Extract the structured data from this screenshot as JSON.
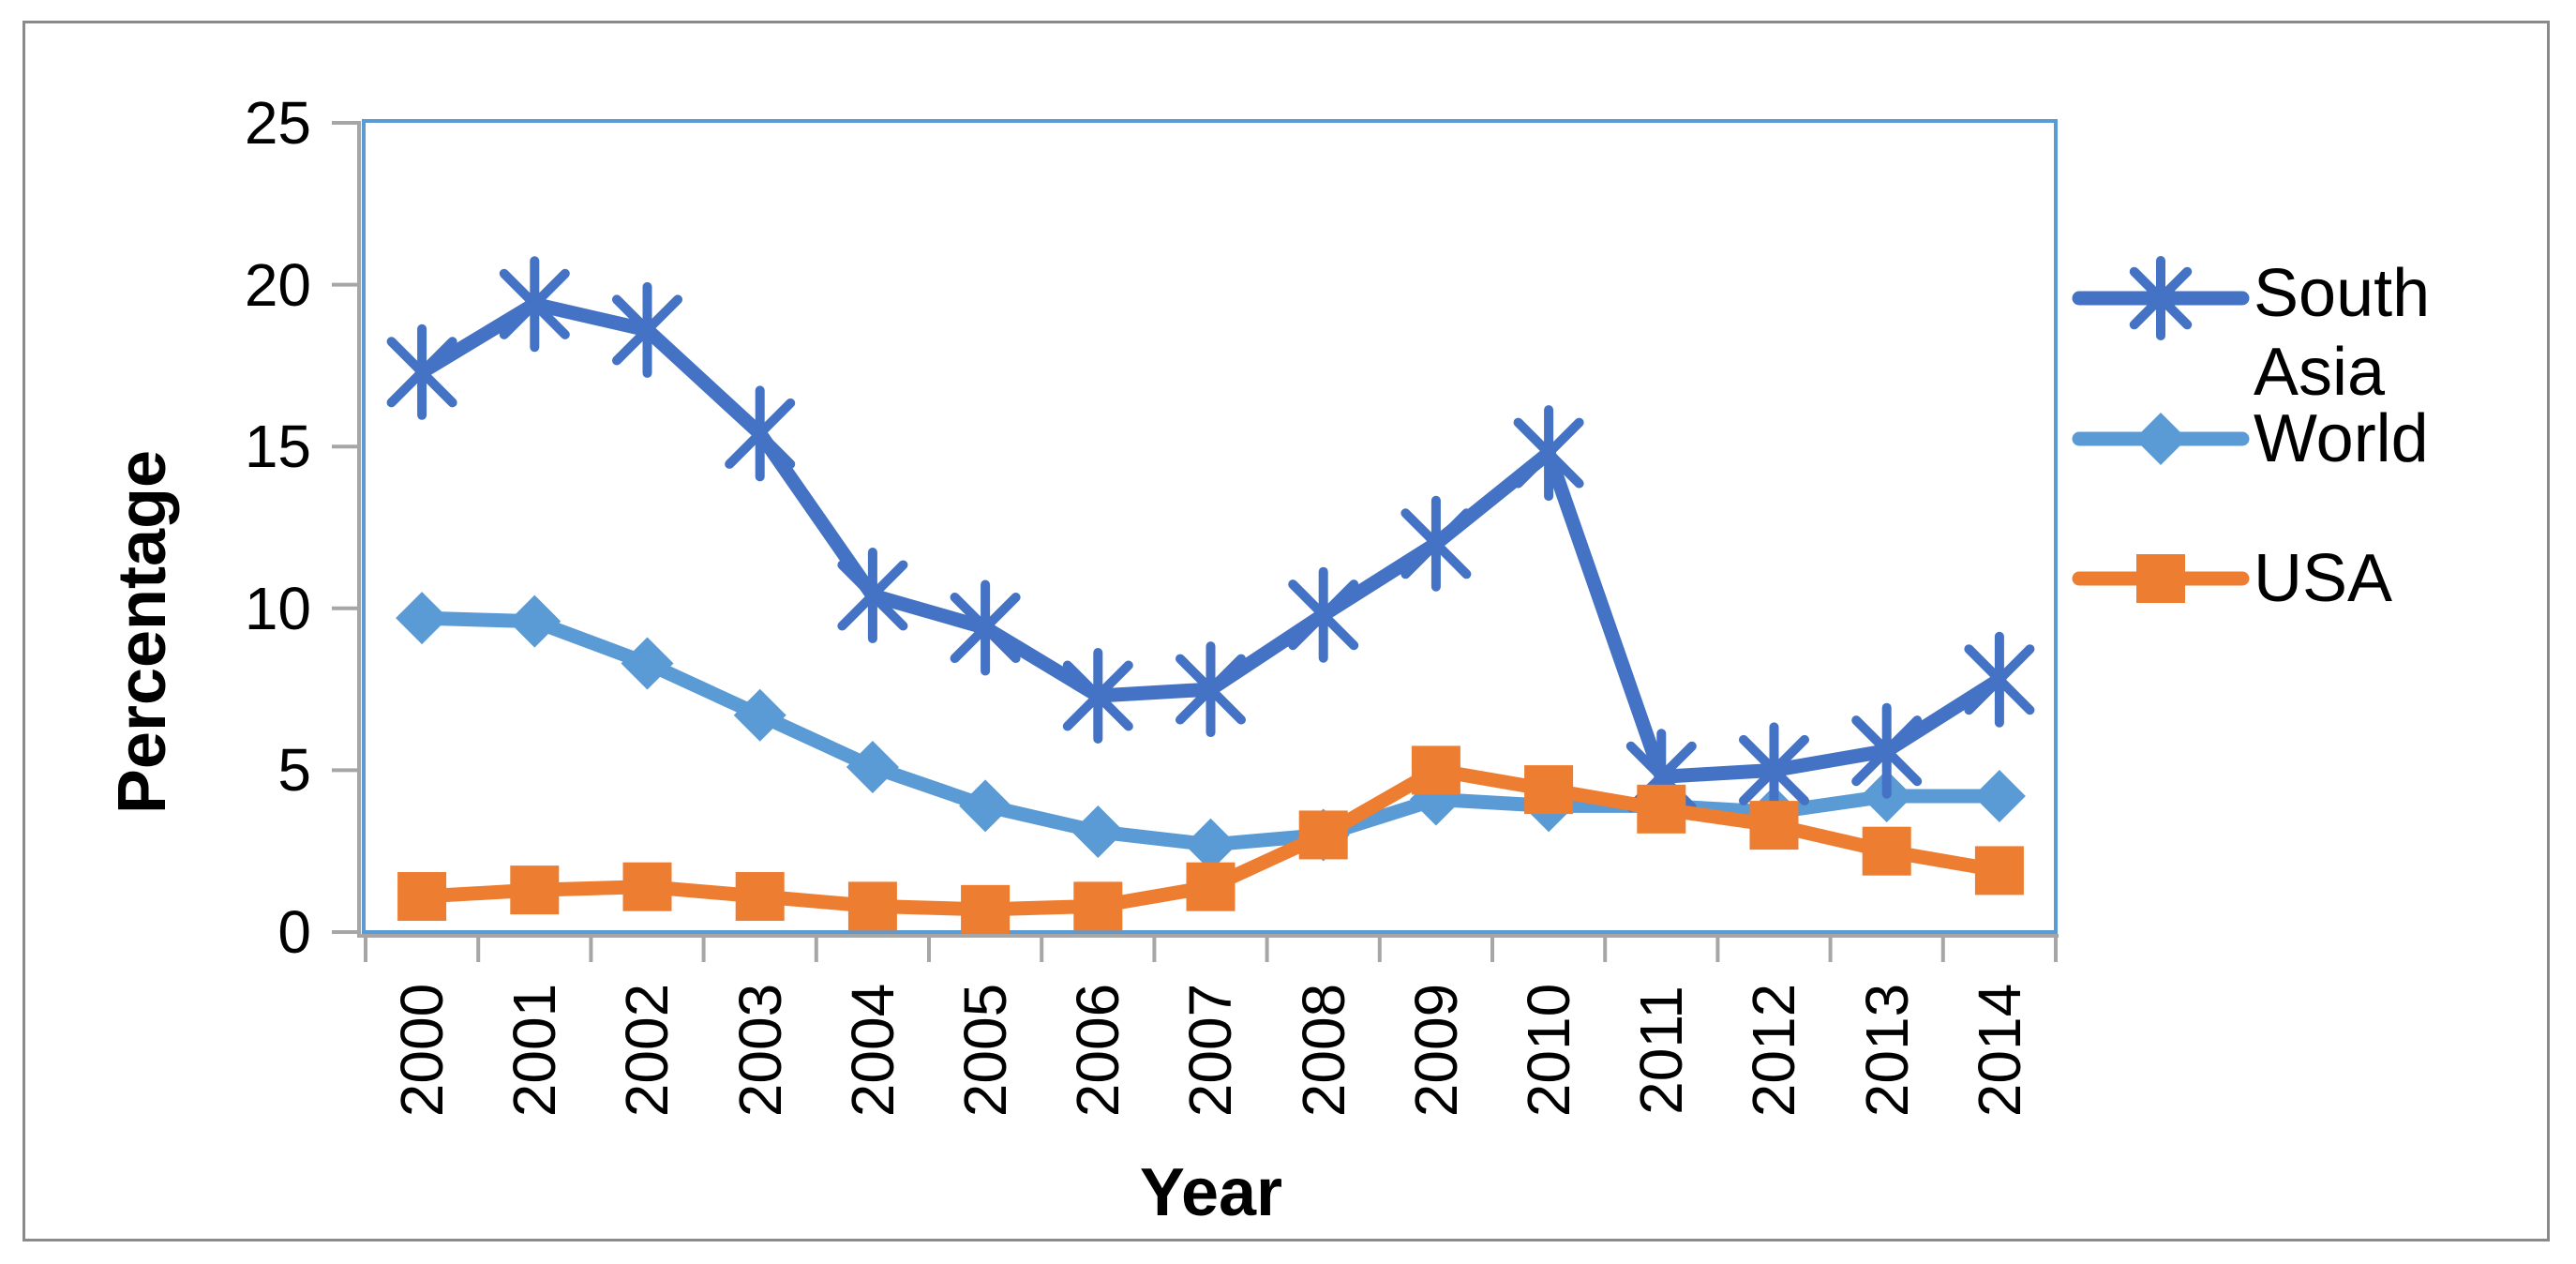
{
  "chart_data": {
    "type": "line",
    "title": "",
    "xlabel": "Year",
    "ylabel": "Percentage",
    "categories": [
      "2000",
      "2001",
      "2002",
      "2003",
      "2004",
      "2005",
      "2006",
      "2007",
      "2008",
      "2009",
      "2010",
      "2011",
      "2012",
      "2013",
      "2014"
    ],
    "y_axis": {
      "min": 0,
      "max": 25,
      "step": 5,
      "tick_labels": [
        "25",
        "20",
        "15",
        "10",
        "5",
        "0"
      ]
    },
    "grid": false,
    "legend_position": "right",
    "series": [
      {
        "name": "South Asia",
        "color": "#4472C4",
        "marker": "asterisk",
        "values": [
          17.3,
          19.4,
          18.6,
          15.4,
          10.4,
          9.4,
          7.3,
          7.5,
          9.8,
          12.0,
          14.8,
          4.8,
          5.0,
          5.6,
          7.8
        ]
      },
      {
        "name": "World",
        "color": "#5B9BD5",
        "marker": "diamond",
        "values": [
          9.7,
          9.6,
          8.3,
          6.7,
          5.1,
          3.9,
          3.1,
          2.7,
          3.0,
          4.1,
          3.9,
          3.9,
          3.7,
          4.2,
          4.2
        ]
      },
      {
        "name": "USA",
        "color": "#ED7D31",
        "marker": "square",
        "values": [
          1.1,
          1.3,
          1.4,
          1.1,
          0.8,
          0.7,
          0.8,
          1.4,
          3.0,
          5.0,
          4.4,
          3.8,
          3.3,
          2.5,
          1.9
        ]
      }
    ],
    "colors": {
      "axis_line": "#A6A6A6",
      "plot_border": "#5B9BD5",
      "outer_border": "#8A8A8A",
      "text": "#000000"
    }
  }
}
